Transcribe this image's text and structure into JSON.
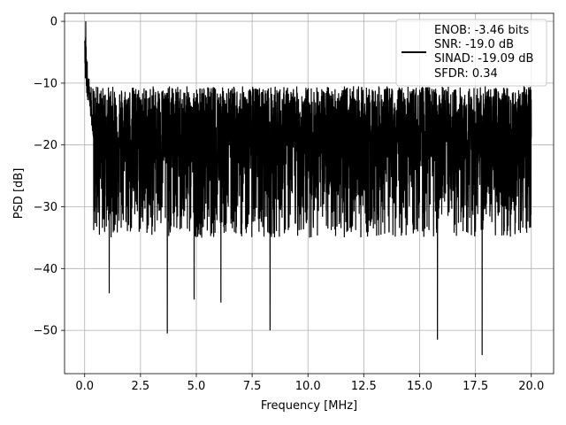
{
  "chart_data": {
    "type": "line",
    "title": "",
    "xlabel": "Frequency [MHz]",
    "ylabel": "PSD [dB]",
    "xlim": [
      -0.9,
      21.0
    ],
    "ylim": [
      -57,
      1.3
    ],
    "xticks": [
      0.0,
      2.5,
      5.0,
      7.5,
      10.0,
      12.5,
      15.0,
      17.5,
      20.0
    ],
    "xtick_labels": [
      "0.0",
      "2.5",
      "5.0",
      "7.5",
      "10.0",
      "12.5",
      "15.0",
      "17.5",
      "20.0"
    ],
    "yticks": [
      0,
      -10,
      -20,
      -30,
      -40,
      -50
    ],
    "ytick_labels": [
      "0",
      "−10",
      "−20",
      "−30",
      "−40",
      "−50"
    ],
    "grid": true,
    "legend_position": "top-right",
    "legend_lines": [
      "ENOB: -3.46 bits",
      "SNR: -19.0 dB",
      "SINAD: -19.09 dB",
      "SFDR: 0.34"
    ],
    "line_color": "#000000",
    "series": [
      {
        "x_range": [
          0.0,
          20.0
        ],
        "peak": {
          "x": 0.05,
          "y": 0.0
        },
        "baseline_mean": -19.0,
        "upper_envelope": -10.5,
        "lower_envelope": -35.0,
        "notable_minima": [
          {
            "x": 1.1,
            "y": -44.0
          },
          {
            "x": 3.7,
            "y": -50.5
          },
          {
            "x": 4.9,
            "y": -45.0
          },
          {
            "x": 6.1,
            "y": -45.5
          },
          {
            "x": 8.3,
            "y": -50.0
          },
          {
            "x": 15.8,
            "y": -51.5
          },
          {
            "x": 17.8,
            "y": -54.0
          }
        ]
      }
    ]
  }
}
